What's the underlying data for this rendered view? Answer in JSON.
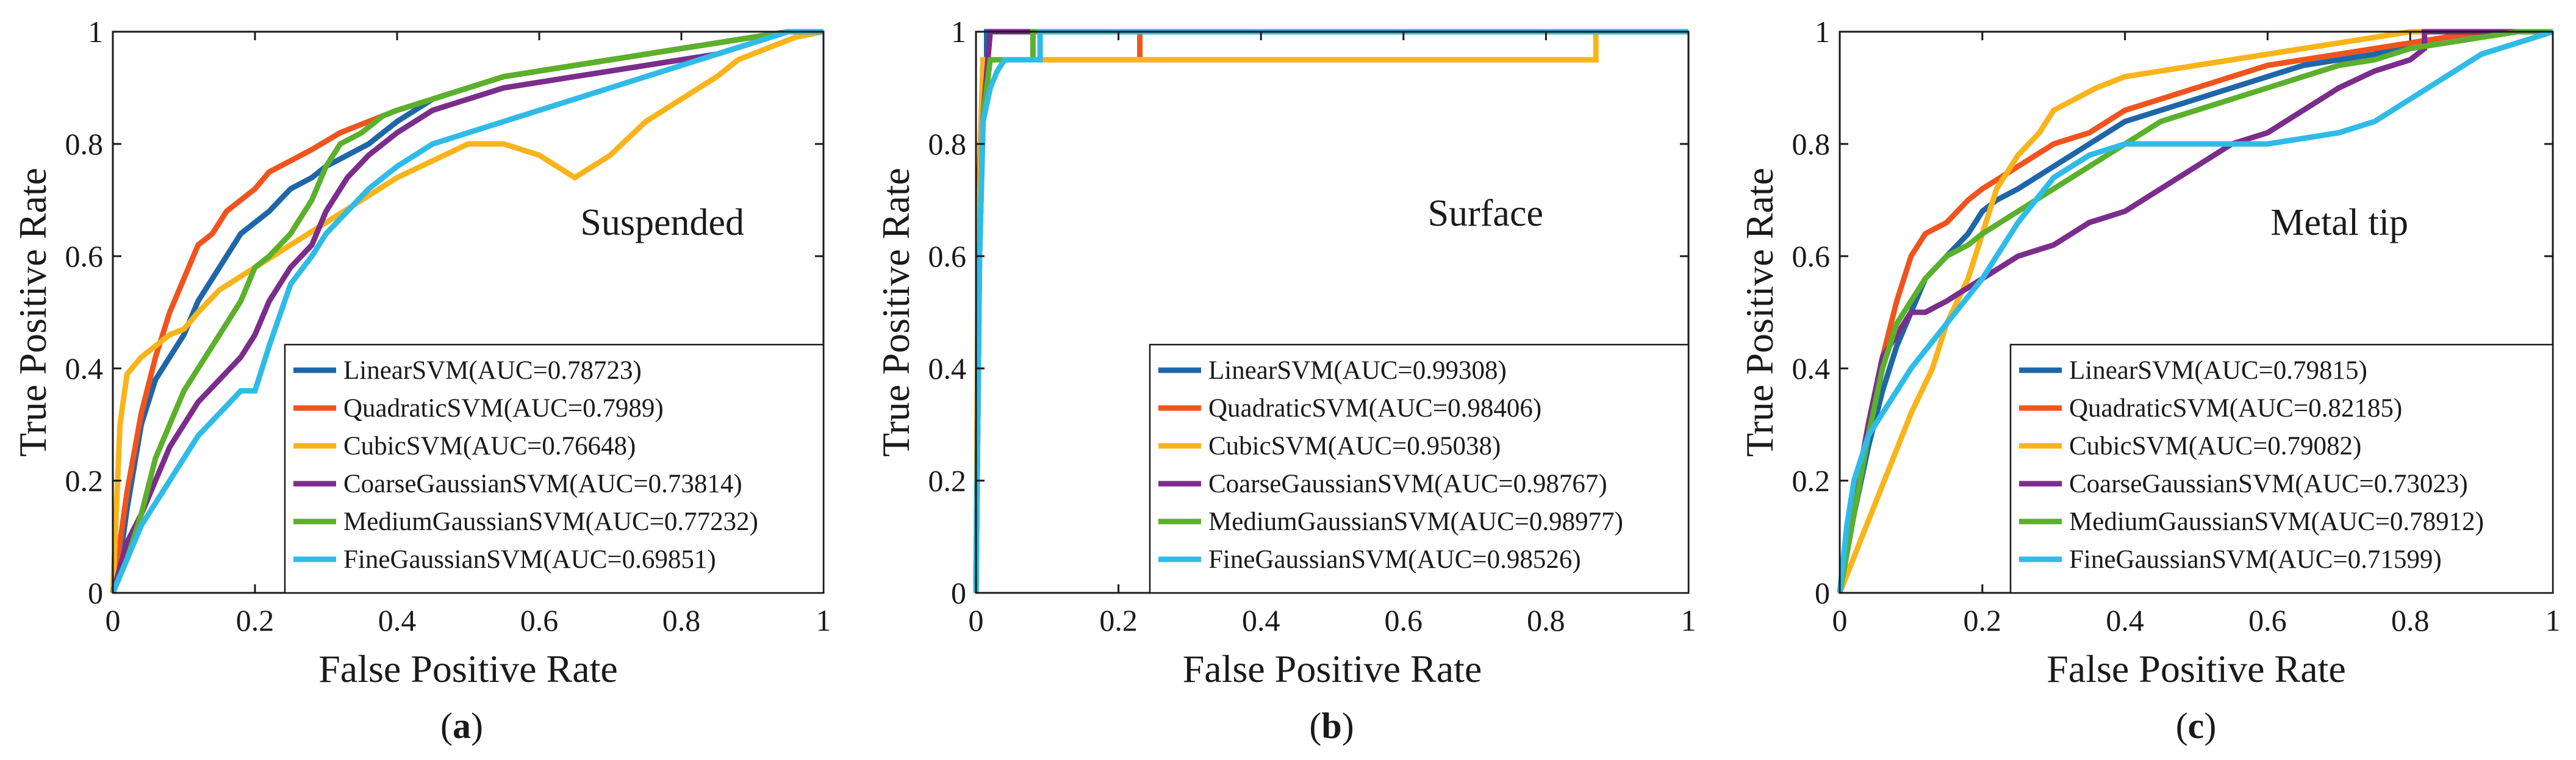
{
  "colors": {
    "LinearSVM": "#1f66a9",
    "QuadraticSVM": "#f0541e",
    "CubicSVM": "#f8b41a",
    "CoarseGaussianSVM": "#7b2d8b",
    "MediumGaussianSVM": "#5bb02c",
    "FineGaussianSVM": "#2fbbe8"
  },
  "chart_data": [
    {
      "type": "line",
      "panel": "a",
      "annotation": "Suspended",
      "caption_open": "(",
      "caption_letter": "a",
      "caption_close": ")",
      "xlabel": "False Positive Rate",
      "ylabel": "True Positive Rate",
      "xlim": [
        0,
        1
      ],
      "ylim": [
        0,
        1
      ],
      "xticks": [
        "0",
        "0.2",
        "0.4",
        "0.6",
        "0.8",
        "1"
      ],
      "yticks": [
        "0",
        "0.2",
        "0.4",
        "0.6",
        "0.8",
        "1"
      ],
      "legend_position": "bottom-right",
      "series": [
        {
          "name": "LinearSVM(AUC=0.78723)",
          "key": "LinearSVM",
          "x": [
            0,
            0.01,
            0.02,
            0.04,
            0.06,
            0.08,
            0.1,
            0.12,
            0.14,
            0.16,
            0.18,
            0.2,
            0.22,
            0.25,
            0.28,
            0.3,
            0.33,
            0.36,
            0.4,
            0.45,
            0.5,
            0.55,
            0.6,
            0.65,
            0.7,
            0.75,
            0.8,
            0.85,
            0.9,
            0.95,
            1
          ],
          "y": [
            0,
            0.06,
            0.15,
            0.3,
            0.38,
            0.42,
            0.46,
            0.52,
            0.56,
            0.6,
            0.64,
            0.66,
            0.68,
            0.72,
            0.74,
            0.76,
            0.78,
            0.8,
            0.84,
            0.88,
            0.9,
            0.92,
            0.93,
            0.94,
            0.95,
            0.96,
            0.97,
            0.98,
            0.99,
            1,
            1
          ]
        },
        {
          "name": "QuadraticSVM(AUC=0.7989)",
          "key": "QuadraticSVM",
          "x": [
            0,
            0.02,
            0.04,
            0.06,
            0.08,
            0.1,
            0.12,
            0.14,
            0.16,
            0.18,
            0.2,
            0.22,
            0.25,
            0.28,
            0.32,
            0.36,
            0.4,
            0.45,
            0.5,
            0.55,
            0.6,
            0.65,
            0.7,
            0.75,
            0.8,
            0.85,
            0.9,
            0.95,
            1
          ],
          "y": [
            0,
            0.18,
            0.32,
            0.42,
            0.5,
            0.56,
            0.62,
            0.64,
            0.68,
            0.7,
            0.72,
            0.75,
            0.77,
            0.79,
            0.82,
            0.84,
            0.86,
            0.88,
            0.9,
            0.92,
            0.93,
            0.94,
            0.95,
            0.96,
            0.97,
            0.98,
            0.99,
            1,
            1
          ]
        },
        {
          "name": "CubicSVM(AUC=0.76648)",
          "key": "CubicSVM",
          "x": [
            0,
            0.01,
            0.02,
            0.04,
            0.06,
            0.08,
            0.1,
            0.12,
            0.15,
            0.2,
            0.25,
            0.3,
            0.35,
            0.4,
            0.45,
            0.5,
            0.55,
            0.6,
            0.65,
            0.7,
            0.75,
            0.8,
            0.85,
            0.88,
            0.92,
            0.96,
            1
          ],
          "y": [
            0,
            0.3,
            0.39,
            0.42,
            0.44,
            0.46,
            0.47,
            0.5,
            0.54,
            0.58,
            0.62,
            0.66,
            0.7,
            0.74,
            0.77,
            0.8,
            0.8,
            0.78,
            0.74,
            0.78,
            0.84,
            0.88,
            0.92,
            0.95,
            0.97,
            0.99,
            1
          ]
        },
        {
          "name": "CoarseGaussianSVM(AUC=0.73814)",
          "key": "CoarseGaussianSVM",
          "x": [
            0,
            0.02,
            0.04,
            0.06,
            0.08,
            0.1,
            0.12,
            0.15,
            0.18,
            0.2,
            0.22,
            0.25,
            0.28,
            0.3,
            0.33,
            0.36,
            0.4,
            0.45,
            0.5,
            0.55,
            0.6,
            0.65,
            0.7,
            0.75,
            0.8,
            0.85,
            0.9,
            0.95,
            1
          ],
          "y": [
            0,
            0.09,
            0.14,
            0.2,
            0.26,
            0.3,
            0.34,
            0.38,
            0.42,
            0.46,
            0.52,
            0.58,
            0.62,
            0.68,
            0.74,
            0.78,
            0.82,
            0.86,
            0.88,
            0.9,
            0.91,
            0.92,
            0.93,
            0.94,
            0.95,
            0.96,
            0.98,
            1,
            1
          ]
        },
        {
          "name": "MediumGaussianSVM(AUC=0.77232)",
          "key": "MediumGaussianSVM",
          "x": [
            0,
            0.02,
            0.04,
            0.06,
            0.08,
            0.1,
            0.12,
            0.15,
            0.18,
            0.2,
            0.22,
            0.25,
            0.28,
            0.3,
            0.32,
            0.35,
            0.38,
            0.4,
            0.45,
            0.5,
            0.55,
            0.6,
            0.65,
            0.7,
            0.75,
            0.8,
            0.85,
            0.9,
            0.95,
            1
          ],
          "y": [
            0,
            0.06,
            0.14,
            0.24,
            0.3,
            0.36,
            0.4,
            0.46,
            0.52,
            0.58,
            0.6,
            0.64,
            0.7,
            0.76,
            0.8,
            0.82,
            0.85,
            0.86,
            0.88,
            0.9,
            0.92,
            0.93,
            0.94,
            0.95,
            0.96,
            0.97,
            0.98,
            0.99,
            1,
            1
          ]
        },
        {
          "name": "FineGaussianSVM(AUC=0.69851)",
          "key": "FineGaussianSVM",
          "x": [
            0,
            0.02,
            0.04,
            0.06,
            0.08,
            0.1,
            0.12,
            0.15,
            0.18,
            0.2,
            0.22,
            0.25,
            0.28,
            0.3,
            0.33,
            0.36,
            0.4,
            0.45,
            0.5,
            0.55,
            0.6,
            0.65,
            0.7,
            0.75,
            0.8,
            0.85,
            0.9,
            0.95,
            1
          ],
          "y": [
            0,
            0.06,
            0.12,
            0.16,
            0.2,
            0.24,
            0.28,
            0.32,
            0.36,
            0.36,
            0.44,
            0.55,
            0.6,
            0.64,
            0.68,
            0.72,
            0.76,
            0.8,
            0.82,
            0.84,
            0.86,
            0.88,
            0.9,
            0.92,
            0.94,
            0.96,
            0.98,
            1,
            1
          ]
        }
      ]
    },
    {
      "type": "line",
      "panel": "b",
      "annotation": "Surface",
      "caption_open": "(",
      "caption_letter": "b",
      "caption_close": ")",
      "xlabel": "False Positive Rate",
      "ylabel": "True Positive Rate",
      "xlim": [
        0,
        1
      ],
      "ylim": [
        0,
        1
      ],
      "xticks": [
        "0",
        "0.2",
        "0.4",
        "0.6",
        "0.8",
        "1"
      ],
      "yticks": [
        "0",
        "0.2",
        "0.4",
        "0.6",
        "0.8",
        "1"
      ],
      "legend_position": "bottom-right",
      "series": [
        {
          "name": "LinearSVM(AUC=0.99308)",
          "key": "LinearSVM",
          "x": [
            0,
            0.005,
            0.01,
            0.015,
            0.015,
            1
          ],
          "y": [
            0,
            0.7,
            0.95,
            0.95,
            1,
            1
          ]
        },
        {
          "name": "QuadraticSVM(AUC=0.98406)",
          "key": "QuadraticSVM",
          "x": [
            0,
            0.005,
            0.01,
            0.23,
            0.23,
            1
          ],
          "y": [
            0,
            0.75,
            0.95,
            0.95,
            1,
            1
          ]
        },
        {
          "name": "CubicSVM(AUC=0.95038)",
          "key": "CubicSVM",
          "x": [
            0,
            0.003,
            0.01,
            0.87,
            0.87,
            1
          ],
          "y": [
            0,
            0.6,
            0.95,
            0.95,
            1,
            1
          ]
        },
        {
          "name": "CoarseGaussianSVM(AUC=0.98767)",
          "key": "CoarseGaussianSVM",
          "x": [
            0,
            0.003,
            0.005,
            0.01,
            0.02,
            1
          ],
          "y": [
            0,
            0.36,
            0.6,
            0.85,
            1,
            1
          ]
        },
        {
          "name": "MediumGaussianSVM(AUC=0.98977)",
          "key": "MediumGaussianSVM",
          "x": [
            0,
            0.005,
            0.01,
            0.02,
            0.08,
            0.08,
            1
          ],
          "y": [
            0,
            0.6,
            0.85,
            0.95,
            0.95,
            1,
            1
          ]
        },
        {
          "name": "FineGaussianSVM(AUC=0.98526)",
          "key": "FineGaussianSVM",
          "x": [
            0,
            0.005,
            0.01,
            0.02,
            0.03,
            0.04,
            0.09,
            0.09,
            1
          ],
          "y": [
            0,
            0.6,
            0.84,
            0.9,
            0.93,
            0.95,
            0.95,
            1,
            1
          ]
        }
      ]
    },
    {
      "type": "line",
      "panel": "c",
      "annotation": "Metal tip",
      "caption_open": "(",
      "caption_letter": "c",
      "caption_close": ")",
      "xlabel": "False Positive Rate",
      "ylabel": "True Positive Rate",
      "xlim": [
        0,
        1
      ],
      "ylim": [
        0,
        1
      ],
      "xticks": [
        "0",
        "0.2",
        "0.4",
        "0.6",
        "0.8",
        "1"
      ],
      "yticks": [
        "0",
        "0.2",
        "0.4",
        "0.6",
        "0.8",
        "1"
      ],
      "legend_position": "bottom-right",
      "series": [
        {
          "name": "LinearSVM(AUC=0.79815)",
          "key": "LinearSVM",
          "x": [
            0,
            0.02,
            0.04,
            0.06,
            0.08,
            0.1,
            0.12,
            0.15,
            0.18,
            0.2,
            0.22,
            0.25,
            0.3,
            0.35,
            0.4,
            0.45,
            0.5,
            0.55,
            0.6,
            0.65,
            0.7,
            0.75,
            0.8,
            0.85,
            0.9,
            0.95,
            1
          ],
          "y": [
            0,
            0.14,
            0.26,
            0.36,
            0.44,
            0.5,
            0.56,
            0.6,
            0.64,
            0.68,
            0.7,
            0.72,
            0.76,
            0.8,
            0.84,
            0.86,
            0.88,
            0.9,
            0.92,
            0.94,
            0.95,
            0.96,
            0.98,
            0.99,
            1,
            1,
            1
          ]
        },
        {
          "name": "QuadraticSVM(AUC=0.82185)",
          "key": "QuadraticSVM",
          "x": [
            0,
            0.02,
            0.04,
            0.06,
            0.08,
            0.1,
            0.12,
            0.15,
            0.18,
            0.2,
            0.25,
            0.3,
            0.35,
            0.4,
            0.45,
            0.5,
            0.55,
            0.6,
            0.65,
            0.7,
            0.75,
            0.8,
            0.85,
            0.9,
            0.95,
            1
          ],
          "y": [
            0,
            0.16,
            0.3,
            0.42,
            0.52,
            0.6,
            0.64,
            0.66,
            0.7,
            0.72,
            0.76,
            0.8,
            0.82,
            0.86,
            0.88,
            0.9,
            0.92,
            0.94,
            0.95,
            0.96,
            0.97,
            0.98,
            0.99,
            1,
            1,
            1
          ]
        },
        {
          "name": "CubicSVM(AUC=0.79082)",
          "key": "CubicSVM",
          "x": [
            0,
            0.05,
            0.1,
            0.13,
            0.15,
            0.18,
            0.2,
            0.22,
            0.25,
            0.28,
            0.3,
            0.33,
            0.36,
            0.4,
            0.45,
            0.5,
            0.55,
            0.6,
            0.65,
            0.7,
            0.75,
            0.8,
            0.85,
            0.9,
            0.95,
            1
          ],
          "y": [
            0,
            0.16,
            0.32,
            0.4,
            0.48,
            0.56,
            0.64,
            0.72,
            0.78,
            0.82,
            0.86,
            0.88,
            0.9,
            0.92,
            0.93,
            0.94,
            0.95,
            0.96,
            0.97,
            0.98,
            0.99,
            1,
            1,
            1,
            1,
            1
          ]
        },
        {
          "name": "CoarseGaussianSVM(AUC=0.73023)",
          "key": "CoarseGaussianSVM",
          "x": [
            0,
            0.02,
            0.04,
            0.06,
            0.08,
            0.1,
            0.12,
            0.15,
            0.2,
            0.25,
            0.3,
            0.35,
            0.4,
            0.45,
            0.5,
            0.55,
            0.6,
            0.65,
            0.7,
            0.75,
            0.8,
            0.82,
            0.82,
            1
          ],
          "y": [
            0,
            0.16,
            0.3,
            0.42,
            0.46,
            0.5,
            0.5,
            0.52,
            0.56,
            0.6,
            0.62,
            0.66,
            0.68,
            0.72,
            0.76,
            0.8,
            0.82,
            0.86,
            0.9,
            0.93,
            0.95,
            0.97,
            1,
            1
          ]
        },
        {
          "name": "MediumGaussianSVM(AUC=0.78912)",
          "key": "MediumGaussianSVM",
          "x": [
            0,
            0.02,
            0.04,
            0.06,
            0.08,
            0.1,
            0.12,
            0.15,
            0.18,
            0.2,
            0.25,
            0.3,
            0.35,
            0.4,
            0.45,
            0.5,
            0.55,
            0.6,
            0.65,
            0.7,
            0.75,
            0.8,
            0.85,
            0.9,
            0.95,
            1
          ],
          "y": [
            0,
            0.14,
            0.28,
            0.4,
            0.48,
            0.52,
            0.56,
            0.6,
            0.62,
            0.64,
            0.68,
            0.72,
            0.76,
            0.8,
            0.84,
            0.86,
            0.88,
            0.9,
            0.92,
            0.94,
            0.95,
            0.97,
            0.98,
            0.99,
            1,
            1
          ]
        },
        {
          "name": "FineGaussianSVM(AUC=0.71599)",
          "key": "FineGaussianSVM",
          "x": [
            0,
            0.01,
            0.02,
            0.04,
            0.06,
            0.08,
            0.1,
            0.15,
            0.2,
            0.25,
            0.3,
            0.35,
            0.4,
            0.5,
            0.6,
            0.7,
            0.75,
            0.8,
            0.85,
            0.9,
            0.95,
            1
          ],
          "y": [
            0,
            0.12,
            0.2,
            0.28,
            0.32,
            0.36,
            0.4,
            0.48,
            0.56,
            0.66,
            0.74,
            0.78,
            0.8,
            0.8,
            0.8,
            0.82,
            0.84,
            0.88,
            0.92,
            0.96,
            0.98,
            1
          ]
        }
      ]
    }
  ]
}
